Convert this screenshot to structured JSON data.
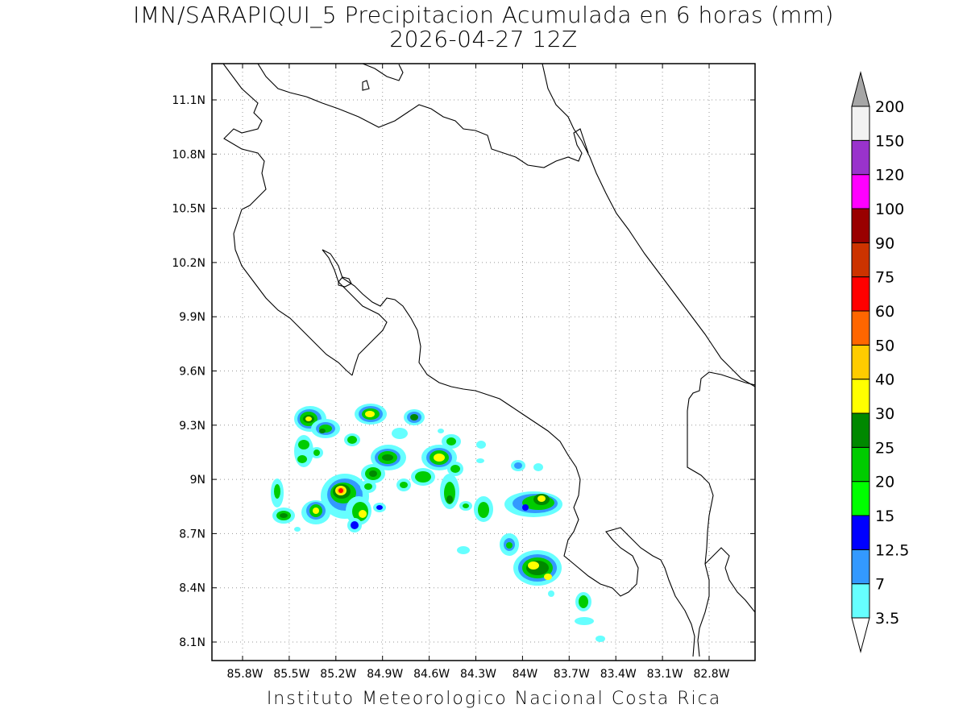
{
  "title_line1": "IMN/SARAPIQUI_5 Precipitacion Acumulada en 6 horas (mm)",
  "title_line2": "2026-04-27 12Z",
  "footer": "Instituto Meteorologico Nacional Costa Rica",
  "map": {
    "lon_range": [
      -86.0,
      -83.0
    ],
    "lat_range": [
      8.0,
      11.2
    ],
    "lat_ticks": [
      "11.1N",
      "10.8N",
      "10.5N",
      "10.2N",
      "9.9N",
      "9.6N",
      "9.3N",
      "9N",
      "8.7N",
      "8.4N",
      "8.1N"
    ],
    "lon_ticks": [
      "85.8W",
      "85.5W",
      "85.2W",
      "84.9W",
      "84.6W",
      "84.3W",
      "84W",
      "83.7W",
      "83.4W",
      "83.1W",
      "82.8W"
    ],
    "gridlines": true,
    "gridline_style": "dotted",
    "coastline_color": "#000000"
  },
  "colorbar": {
    "placement": "right",
    "levels": [
      "3.5",
      "7",
      "12.5",
      "15",
      "20",
      "25",
      "30",
      "40",
      "50",
      "60",
      "75",
      "90",
      "100",
      "120",
      "150",
      "200"
    ],
    "colors": [
      "#66ffff",
      "#3399ff",
      "#0000ff",
      "#00ff00",
      "#00cc00",
      "#008800",
      "#ffff00",
      "#ffcc00",
      "#ff6600",
      "#ff0000",
      "#cc3300",
      "#990000",
      "#ff00ff",
      "#9933cc",
      "#f2f2f2"
    ],
    "above_max_color": "#a6a6a6",
    "below_min_color": "#ffffff"
  }
}
